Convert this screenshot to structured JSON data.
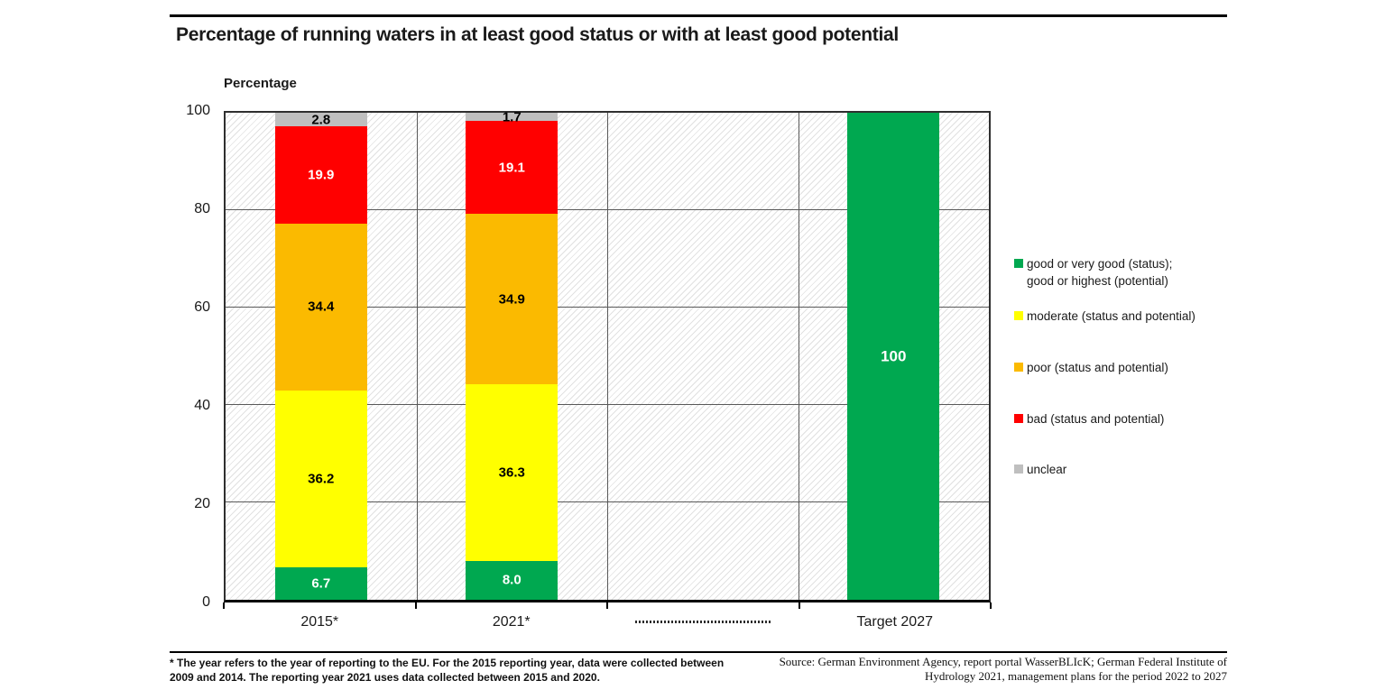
{
  "title": "Percentage of running waters in at least good status or with at least good potential",
  "chart_data": {
    "type": "bar",
    "stacked": true,
    "title": "Percentage of running waters in at least good status or with at least good potential",
    "xlabel": "",
    "ylabel": "Percentage",
    "ylim": [
      0,
      100
    ],
    "yticks": [
      0,
      20,
      40,
      60,
      80,
      100
    ],
    "grid": true,
    "hatched_plot_background": true,
    "legend_position": "right",
    "categories": [
      "2015*",
      "2021*",
      "",
      "Target 2027"
    ],
    "series": [
      {
        "key": "good",
        "name": "good or very good (status); good or highest (potential)",
        "legend_lines": [
          "good or very good (status);",
          "good or highest (potential)"
        ],
        "color": "#00a850",
        "label_color": "#ffffff",
        "values": [
          6.7,
          8.0,
          null,
          100
        ]
      },
      {
        "key": "moderate",
        "name": "moderate (status and potential)",
        "legend_lines": [
          "moderate (status and potential)"
        ],
        "color": "#ffff00",
        "label_color": "#000000",
        "values": [
          36.2,
          36.3,
          null,
          null
        ]
      },
      {
        "key": "poor",
        "name": "poor (status and potential)",
        "legend_lines": [
          "poor (status and potential)"
        ],
        "color": "#fbba00",
        "label_color": "#000000",
        "values": [
          34.4,
          34.9,
          null,
          null
        ]
      },
      {
        "key": "bad",
        "name": "bad (status and potential)",
        "legend_lines": [
          "bad (status and potential)"
        ],
        "color": "#ff0000",
        "label_color": "#ffffff",
        "values": [
          19.9,
          19.1,
          null,
          null
        ]
      },
      {
        "key": "unclear",
        "name": "unclear",
        "legend_lines": [
          "unclear"
        ],
        "color": "#bfbfbf",
        "label_color": "#000000",
        "values": [
          2.8,
          1.7,
          null,
          null
        ]
      }
    ]
  },
  "footnotes": {
    "left_lines": [
      "* The year refers to the year of reporting to the EU. For the 2015 reporting year, data were collected between",
      "2009 and 2014. The reporting year 2021 uses data collected between 2015 and 2020."
    ],
    "source_lines": [
      "Source: German Environment Agency, report portal WasserBLIcK; German Federal Institute of",
      "Hydrology 2021, management plans for the period 2022 to 2027"
    ]
  }
}
